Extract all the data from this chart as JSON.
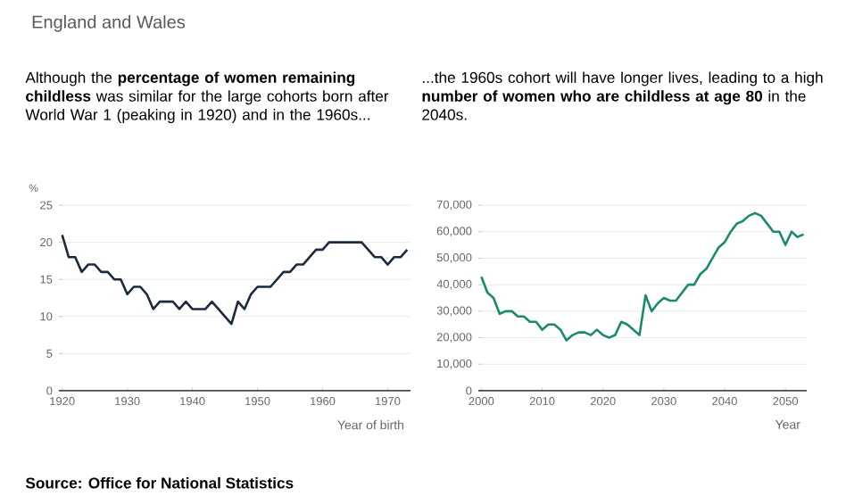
{
  "chart_data": [
    {
      "type": "line",
      "title": "England and Wales",
      "subtitle": "Although the **percentage of women remaining childless** was similar for the large cohorts born after World War 1 (peaking in 1920) and in the 1960s...",
      "ylabel": "%",
      "xlabel": "Year of birth",
      "annotations": [
        "Source: Office for National Statistics"
      ],
      "x": [
        1920,
        1921,
        1922,
        1923,
        1924,
        1925,
        1926,
        1927,
        1928,
        1929,
        1930,
        1931,
        1932,
        1933,
        1934,
        1935,
        1936,
        1937,
        1938,
        1939,
        1940,
        1941,
        1942,
        1943,
        1944,
        1945,
        1946,
        1947,
        1948,
        1949,
        1950,
        1951,
        1952,
        1953,
        1954,
        1955,
        1956,
        1957,
        1958,
        1959,
        1960,
        1961,
        1962,
        1963,
        1964,
        1965,
        1966,
        1967,
        1968,
        1969,
        1970,
        1971,
        1972,
        1973
      ],
      "series": [
        {
          "color": "#1b2a3f",
          "values": [
            21,
            18,
            18,
            16,
            17,
            17,
            16,
            16,
            15,
            15,
            13,
            14,
            14,
            13,
            11,
            12,
            12,
            12,
            11,
            12,
            11,
            11,
            11,
            12,
            11,
            10,
            9,
            12,
            11,
            13,
            14,
            14,
            14,
            15,
            16,
            16,
            17,
            17,
            18,
            19,
            19,
            20,
            20,
            20,
            20,
            20,
            20,
            19,
            18,
            18,
            17,
            18,
            18,
            19
          ]
        }
      ],
      "xlim": [
        1919.5,
        1973.5
      ],
      "ylim": [
        0,
        25
      ],
      "xticks": [
        1920,
        1930,
        1940,
        1950,
        1960,
        1970
      ],
      "yticks": [
        0,
        5,
        10,
        15,
        20,
        25
      ],
      "grid": "y",
      "marker": "none",
      "line_style": "solid"
    },
    {
      "type": "line",
      "subtitle": "...the 1960s cohort will have longer lives, leading to a high **number of women who are childless at age 80** in the 2040s.",
      "xlabel": "Year",
      "x": [
        2000,
        2001,
        2002,
        2003,
        2004,
        2005,
        2006,
        2007,
        2008,
        2009,
        2010,
        2011,
        2012,
        2013,
        2014,
        2015,
        2016,
        2017,
        2018,
        2019,
        2020,
        2021,
        2022,
        2023,
        2024,
        2025,
        2026,
        2027,
        2028,
        2029,
        2030,
        2031,
        2032,
        2033,
        2034,
        2035,
        2036,
        2037,
        2038,
        2039,
        2040,
        2041,
        2042,
        2043,
        2044,
        2045,
        2046,
        2047,
        2048,
        2049,
        2050,
        2051,
        2052,
        2053
      ],
      "series": [
        {
          "color": "#1a8a6e",
          "values": [
            43000,
            37000,
            35000,
            29000,
            30000,
            30000,
            28000,
            28000,
            26000,
            26000,
            23000,
            25000,
            25000,
            23000,
            19000,
            21000,
            22000,
            22000,
            21000,
            23000,
            21000,
            20000,
            21000,
            26000,
            25000,
            23000,
            21000,
            36000,
            30000,
            33000,
            35000,
            34000,
            34000,
            37000,
            40000,
            40000,
            44000,
            46000,
            50000,
            54000,
            56000,
            60000,
            63000,
            64000,
            66000,
            67000,
            66000,
            63000,
            60000,
            60000,
            55000,
            60000,
            58000,
            59000
          ]
        }
      ],
      "xlim": [
        1999.5,
        2053.5
      ],
      "ylim": [
        0,
        70000
      ],
      "xticks": [
        2000,
        2010,
        2020,
        2030,
        2040,
        2050
      ],
      "yticks": [
        0,
        {
          "value": 10000,
          "label": "10,000"
        },
        {
          "value": 20000,
          "label": "20,000"
        },
        {
          "value": 30000,
          "label": "30,000"
        },
        {
          "value": 40000,
          "label": "40,000"
        },
        {
          "value": 50000,
          "label": "50,000"
        },
        {
          "value": 60000,
          "label": "60,000"
        },
        {
          "value": 70000,
          "label": "70,000"
        }
      ],
      "grid": "y",
      "marker": "none",
      "line_style": "solid"
    }
  ]
}
